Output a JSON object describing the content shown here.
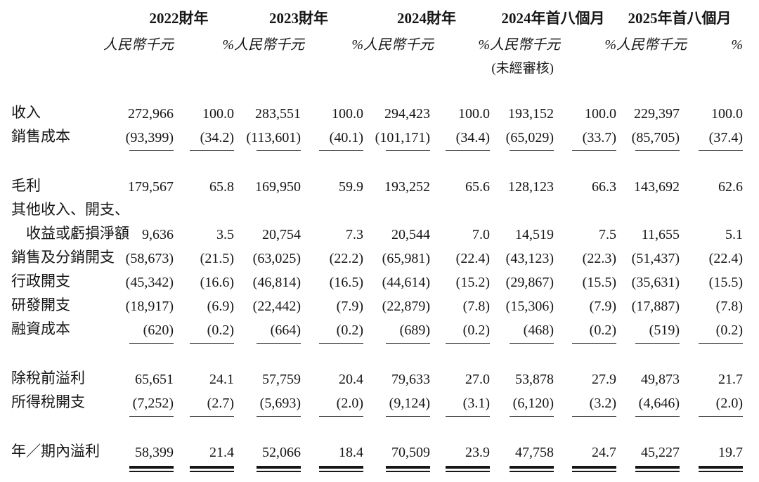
{
  "table": {
    "columns": [
      {
        "period": "2022財年",
        "unit": "人民幣千元",
        "pct": "%",
        "note": ""
      },
      {
        "period": "2023財年",
        "unit": "人民幣千元",
        "pct": "%",
        "note": ""
      },
      {
        "period": "2024財年",
        "unit": "人民幣千元",
        "pct": "%",
        "note": ""
      },
      {
        "period": "2024年首八個月",
        "unit": "人民幣千元",
        "pct": "%",
        "note": "(未經審核)"
      },
      {
        "period": "2025年首八個月",
        "unit": "人民幣千元",
        "pct": "%",
        "note": ""
      }
    ],
    "rows": [
      {
        "type": "data",
        "label": "收入",
        "indent": 0,
        "rule": "",
        "cells": [
          "272,966",
          "100.0",
          "283,551",
          "100.0",
          "294,423",
          "100.0",
          "193,152",
          "100.0",
          "229,397",
          "100.0"
        ]
      },
      {
        "type": "data",
        "label": "銷售成本",
        "indent": 0,
        "rule": "single",
        "cells": [
          "(93,399)",
          "(34.2)",
          "(113,601)",
          "(40.1)",
          "(101,171)",
          "(34.4)",
          "(65,029)",
          "(33.7)",
          "(85,705)",
          "(37.4)"
        ]
      },
      {
        "type": "spacer"
      },
      {
        "type": "data",
        "label": "毛利",
        "indent": 0,
        "rule": "",
        "cells": [
          "179,567",
          "65.8",
          "169,950",
          "59.9",
          "193,252",
          "65.6",
          "128,123",
          "66.3",
          "143,692",
          "62.6"
        ]
      },
      {
        "type": "data",
        "label": "其他收入、開支、",
        "indent": 0,
        "rule": "",
        "cells": [
          "",
          "",
          "",
          "",
          "",
          "",
          "",
          "",
          "",
          ""
        ]
      },
      {
        "type": "data",
        "label": "收益或虧損淨額",
        "indent": 1,
        "rule": "",
        "cells": [
          "9,636",
          "3.5",
          "20,754",
          "7.3",
          "20,544",
          "7.0",
          "14,519",
          "7.5",
          "11,655",
          "5.1"
        ]
      },
      {
        "type": "data",
        "label": "銷售及分銷開支",
        "indent": 0,
        "rule": "",
        "cells": [
          "(58,673)",
          "(21.5)",
          "(63,025)",
          "(22.2)",
          "(65,981)",
          "(22.4)",
          "(43,123)",
          "(22.3)",
          "(51,437)",
          "(22.4)"
        ]
      },
      {
        "type": "data",
        "label": "行政開支",
        "indent": 0,
        "rule": "",
        "cells": [
          "(45,342)",
          "(16.6)",
          "(46,814)",
          "(16.5)",
          "(44,614)",
          "(15.2)",
          "(29,867)",
          "(15.5)",
          "(35,631)",
          "(15.5)"
        ]
      },
      {
        "type": "data",
        "label": "研發開支",
        "indent": 0,
        "rule": "",
        "cells": [
          "(18,917)",
          "(6.9)",
          "(22,442)",
          "(7.9)",
          "(22,879)",
          "(7.8)",
          "(15,306)",
          "(7.9)",
          "(17,887)",
          "(7.8)"
        ]
      },
      {
        "type": "data",
        "label": "融資成本",
        "indent": 0,
        "rule": "single",
        "cells": [
          "(620)",
          "(0.2)",
          "(664)",
          "(0.2)",
          "(689)",
          "(0.2)",
          "(468)",
          "(0.2)",
          "(519)",
          "(0.2)"
        ]
      },
      {
        "type": "spacer"
      },
      {
        "type": "data",
        "label": "除稅前溢利",
        "indent": 0,
        "rule": "",
        "cells": [
          "65,651",
          "24.1",
          "57,759",
          "20.4",
          "79,633",
          "27.0",
          "53,878",
          "27.9",
          "49,873",
          "21.7"
        ]
      },
      {
        "type": "data",
        "label": "所得稅開支",
        "indent": 0,
        "rule": "single",
        "cells": [
          "(7,252)",
          "(2.7)",
          "(5,693)",
          "(2.0)",
          "(9,124)",
          "(3.1)",
          "(6,120)",
          "(3.2)",
          "(4,646)",
          "(2.0)"
        ]
      },
      {
        "type": "spacer"
      },
      {
        "type": "data",
        "label": "年／期內溢利",
        "indent": 0,
        "rule": "double",
        "cells": [
          "58,399",
          "21.4",
          "52,066",
          "18.4",
          "70,509",
          "23.9",
          "47,758",
          "24.7",
          "45,227",
          "19.7"
        ]
      }
    ]
  }
}
